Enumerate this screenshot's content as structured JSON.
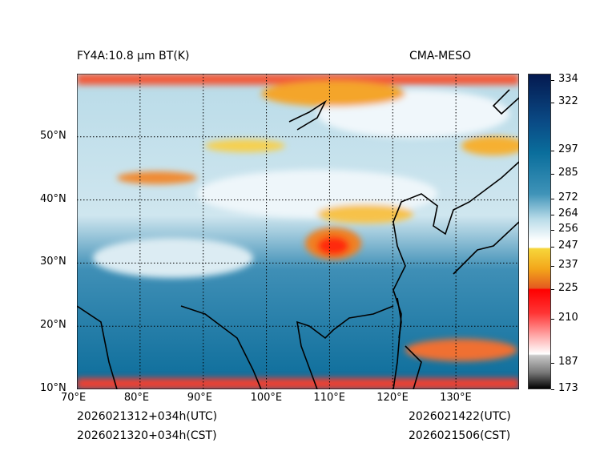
{
  "title_left": "FY4A:10.8 µm BT(K)",
  "title_right": "CMA-MESO",
  "footer": {
    "init_utc": "2026021312+034h(UTC)",
    "init_cst": "2026021320+034h(CST)",
    "valid_utc": "2026021422(UTC)",
    "valid_cst": "2026021506(CST)"
  },
  "map": {
    "lon_range": [
      70,
      140
    ],
    "lat_range": [
      10,
      60
    ],
    "lon_ticks": [
      {
        "v": 70,
        "label": "70°E"
      },
      {
        "v": 80,
        "label": "80°E"
      },
      {
        "v": 90,
        "label": "90°E"
      },
      {
        "v": 100,
        "label": "100°E"
      },
      {
        "v": 110,
        "label": "110°E"
      },
      {
        "v": 120,
        "label": "120°E"
      },
      {
        "v": 130,
        "label": "130°E"
      }
    ],
    "lat_ticks": [
      {
        "v": 10,
        "label": "10°N"
      },
      {
        "v": 20,
        "label": "20°N"
      },
      {
        "v": 30,
        "label": "30°N"
      },
      {
        "v": 40,
        "label": "40°N"
      },
      {
        "v": 50,
        "label": "50°N"
      }
    ]
  },
  "colorbar": {
    "ticks": [
      "334",
      "322",
      "297",
      "285",
      "272",
      "264",
      "256",
      "247",
      "237",
      "225",
      "210",
      "187",
      "173"
    ],
    "colors": {
      "dark_blue": "#041a50",
      "blue": "#0a6e9c",
      "light": "#c8e4ef",
      "yellow": "#f6d63a",
      "orange": "#f08a10",
      "red": "#ff0000",
      "gray": "#bbbbbb"
    }
  }
}
